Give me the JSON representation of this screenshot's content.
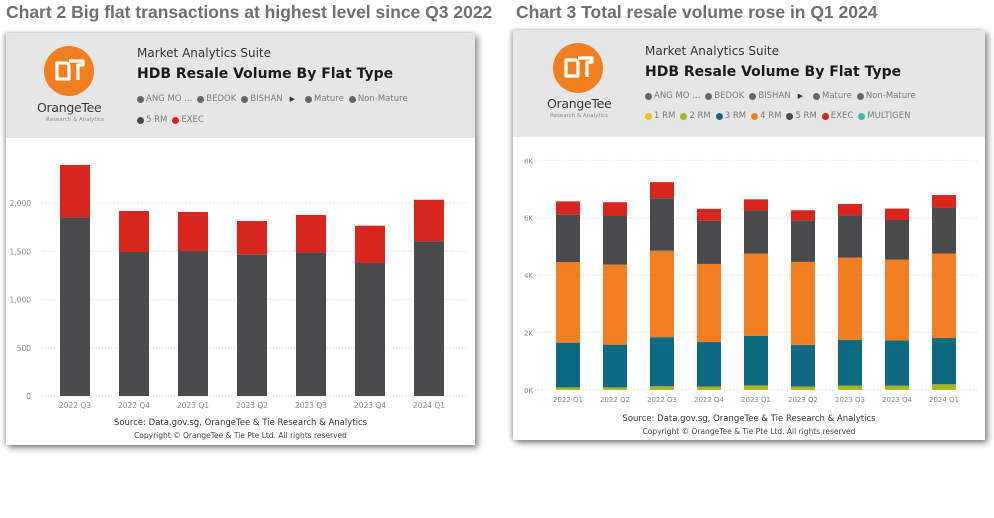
{
  "brand": {
    "logo_text": "OT",
    "logo_word": "OrangeTee",
    "logo_sub": "Research & Analytics",
    "orange": "#f07f22"
  },
  "legend_filters": {
    "areas": [
      "ANG MO ...",
      "BEDOK",
      "BISHAN"
    ],
    "more_icon": "play-arrow-icon",
    "estate_types": [
      "Mature",
      "Non-Mature"
    ]
  },
  "charts": [
    {
      "figure_title": "Chart 2 Big flat transactions at highest level since Q3 2022",
      "suite": "Market Analytics Suite",
      "title": "HDB Resale Volume By Flat Type",
      "legend": [
        {
          "label": "5 RM",
          "color": "#4a4a4c"
        },
        {
          "label": "EXEC",
          "color": "#d7261e"
        }
      ],
      "source": "Source: Data.gov.sg, OrangeTee & Tie Research & Analytics",
      "copyright": "Copyright © OrangeTee & Tie Pte Ltd. All rights reserved"
    },
    {
      "figure_title": "Chart 3 Total resale volume rose in Q1 2024",
      "suite": "Market Analytics Suite",
      "title": "HDB Resale Volume By Flat Type",
      "legend": [
        {
          "label": "1 RM",
          "color": "#f2c21b"
        },
        {
          "label": "2 RM",
          "color": "#a9b51c"
        },
        {
          "label": "3 RM",
          "color": "#0e6a80"
        },
        {
          "label": "4 RM",
          "color": "#f07f22"
        },
        {
          "label": "5 RM",
          "color": "#4a4a4c"
        },
        {
          "label": "EXEC",
          "color": "#d7261e"
        },
        {
          "label": "MULTIGEN",
          "color": "#3fb7a8"
        }
      ],
      "source": "Source: Data.gov.sg, OrangeTee & Tie Research & Analytics",
      "copyright": "Copyright © OrangeTee & Tie Pte Ltd. All rights reserved"
    }
  ],
  "chart_data": [
    {
      "type": "bar",
      "stacked": true,
      "title": "HDB Resale Volume By Flat Type",
      "xlabel": "",
      "ylabel": "",
      "categories": [
        "2022 Q3",
        "2022 Q4",
        "2023 Q1",
        "2023 Q2",
        "2023 Q3",
        "2023 Q4",
        "2024 Q1"
      ],
      "yticks": [
        0,
        500,
        1000,
        1500,
        2000
      ],
      "ytick_labels": [
        "0",
        "500",
        "1,000",
        "1,500",
        "2,000"
      ],
      "ylim": [
        0,
        2450
      ],
      "grid": true,
      "legend_position": "top",
      "series": [
        {
          "name": "5 RM",
          "color": "#4a4a4c",
          "values": [
            1851,
            1492,
            1503,
            1464,
            1488,
            1378,
            1602
          ]
        },
        {
          "name": "EXEC",
          "color": "#d7261e",
          "values": [
            543,
            425,
            404,
            349,
            388,
            387,
            432
          ]
        }
      ]
    },
    {
      "type": "bar",
      "stacked": true,
      "title": "HDB Resale Volume By Flat Type",
      "xlabel": "",
      "ylabel": "",
      "categories": [
        "2022 Q1",
        "2022 Q2",
        "2022 Q3",
        "2022 Q4",
        "2023 Q1",
        "2023 Q2",
        "2023 Q3",
        "2023 Q4",
        "2024 Q1"
      ],
      "yticks": [
        0,
        2000,
        4000,
        6000,
        8000
      ],
      "ytick_labels": [
        "0K",
        "2K",
        "4K",
        "6K",
        "8K"
      ],
      "ylim": [
        0,
        8000
      ],
      "grid": true,
      "legend_position": "top",
      "series": [
        {
          "name": "1 RM",
          "color": "#f2c21b",
          "values": [
            5,
            5,
            5,
            5,
            5,
            5,
            5,
            5,
            5
          ]
        },
        {
          "name": "2 RM",
          "color": "#a9b51c",
          "values": [
            85,
            85,
            125,
            115,
            155,
            115,
            145,
            145,
            195
          ]
        },
        {
          "name": "3 RM",
          "color": "#0e6a80",
          "values": [
            1560,
            1490,
            1710,
            1550,
            1730,
            1450,
            1590,
            1580,
            1610
          ]
        },
        {
          "name": "4 RM",
          "color": "#f07f22",
          "values": [
            2800,
            2790,
            3010,
            2720,
            2860,
            2890,
            2870,
            2810,
            2940
          ]
        },
        {
          "name": "5 RM",
          "color": "#4a4a4c",
          "values": [
            1650,
            1690,
            1830,
            1500,
            1500,
            1450,
            1480,
            1380,
            1590
          ]
        },
        {
          "name": "EXEC",
          "color": "#d7261e",
          "values": [
            470,
            480,
            560,
            420,
            390,
            350,
            390,
            400,
            450
          ]
        },
        {
          "name": "MULTIGEN",
          "color": "#3fb7a8",
          "values": [
            0,
            0,
            0,
            0,
            0,
            0,
            0,
            0,
            0
          ]
        }
      ]
    }
  ]
}
